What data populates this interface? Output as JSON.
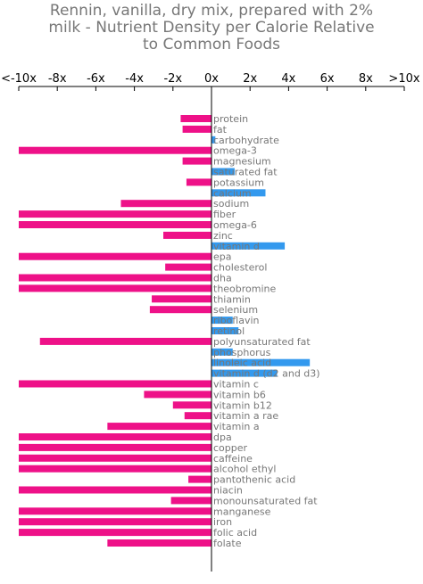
{
  "chart_data": {
    "type": "bar",
    "orientation": "horizontal",
    "title_lines": [
      "Rennin, vanilla, dry mix, prepared with 2%",
      "milk - Nutrient Density per Calorie Relative",
      "to Common Foods"
    ],
    "x_ticks": [
      "<-10x",
      "-8x",
      "-6x",
      "-4x",
      "-2x",
      "0x",
      "2x",
      "4x",
      "6x",
      "8x",
      ">10x"
    ],
    "xlim": [
      -10,
      10
    ],
    "grid": false,
    "colors": {
      "positive": "#3399ee",
      "negative": "#ee1188"
    },
    "categories": [
      "protein",
      "fat",
      "carbohydrate",
      "omega-3",
      "magnesium",
      "saturated fat",
      "potassium",
      "calcium",
      "sodium",
      "fiber",
      "omega-6",
      "zinc",
      "vitamin d",
      "epa",
      "cholesterol",
      "dha",
      "theobromine",
      "thiamin",
      "selenium",
      "riboflavin",
      "retinol",
      "polyunsaturated fat",
      "phosphorus",
      "linoleic acid",
      "vitamin d (d2 and d3)",
      "vitamin c",
      "vitamin b6",
      "vitamin b12",
      "vitamin a rae",
      "vitamin a",
      "dpa",
      "copper",
      "caffeine",
      "alcohol ethyl",
      "pantothenic acid",
      "niacin",
      "monounsaturated fat",
      "manganese",
      "iron",
      "folic acid",
      "folate"
    ],
    "values": [
      -1.6,
      -1.5,
      0.2,
      -10,
      -1.5,
      1.2,
      -1.3,
      2.8,
      -4.7,
      -10,
      -10,
      -2.5,
      3.8,
      -10,
      -2.4,
      -10,
      -10,
      -3.1,
      -3.2,
      1.1,
      1.4,
      -8.9,
      1.1,
      5.1,
      3.4,
      -10,
      -3.5,
      -2.0,
      -1.4,
      -5.4,
      -10,
      -10,
      -10,
      -10,
      -1.2,
      -10,
      -2.1,
      -10,
      -10,
      -10,
      -5.4
    ]
  }
}
